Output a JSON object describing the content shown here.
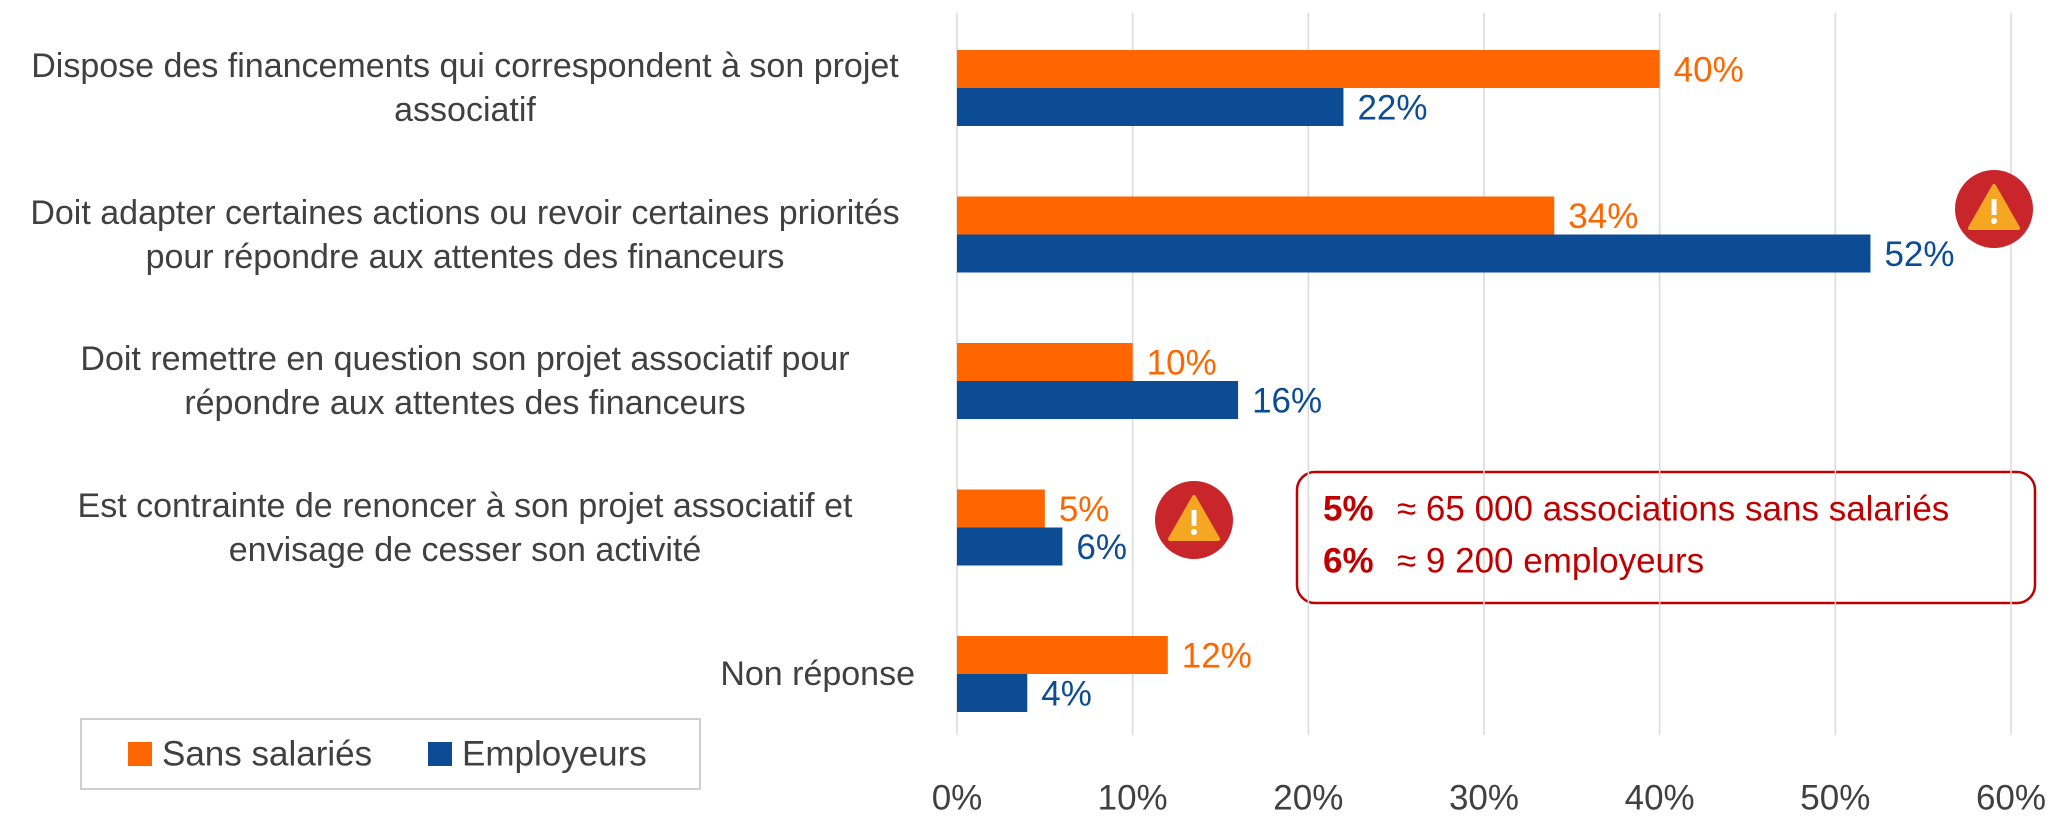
{
  "chart_data": {
    "type": "bar",
    "orientation": "horizontal",
    "categories": [
      "Dispose des financements qui correspondent à son projet associatif",
      "Doit adapter certaines actions ou revoir certaines priorités pour répondre aux attentes des financeurs",
      "Doit remettre en question son projet associatif pour répondre aux attentes des financeurs",
      "Est contrainte de renoncer à son projet associatif et envisage de cesser son activité",
      "Non réponse"
    ],
    "series": [
      {
        "name": "Sans salariés",
        "color": "#ff6600",
        "values": [
          40,
          34,
          10,
          5,
          12
        ],
        "value_labels": [
          "40%",
          "34%",
          "10%",
          "5%",
          "12%"
        ]
      },
      {
        "name": "Employeurs",
        "color": "#0b4c94",
        "values": [
          22,
          52,
          16,
          6,
          4
        ],
        "value_labels": [
          "22%",
          "52%",
          "16%",
          "6%",
          "4%"
        ]
      }
    ],
    "xlim": [
      0,
      60
    ],
    "xticks": [
      {
        "value": 0,
        "label": "0%"
      },
      {
        "value": 10,
        "label": "10%"
      },
      {
        "value": 20,
        "label": "20%"
      },
      {
        "value": 30,
        "label": "30%"
      },
      {
        "value": 40,
        "label": "40%"
      },
      {
        "value": 50,
        "label": "50%"
      },
      {
        "value": 60,
        "label": "60%"
      }
    ],
    "grid": true,
    "legend": "bottom-left",
    "annotation": {
      "lines": [
        {
          "value": "5%",
          "text": "≈ 65 000 associations sans salariés"
        },
        {
          "value": "6%",
          "text": "≈ 9 200 employeurs"
        }
      ],
      "color": "#c00000"
    }
  }
}
